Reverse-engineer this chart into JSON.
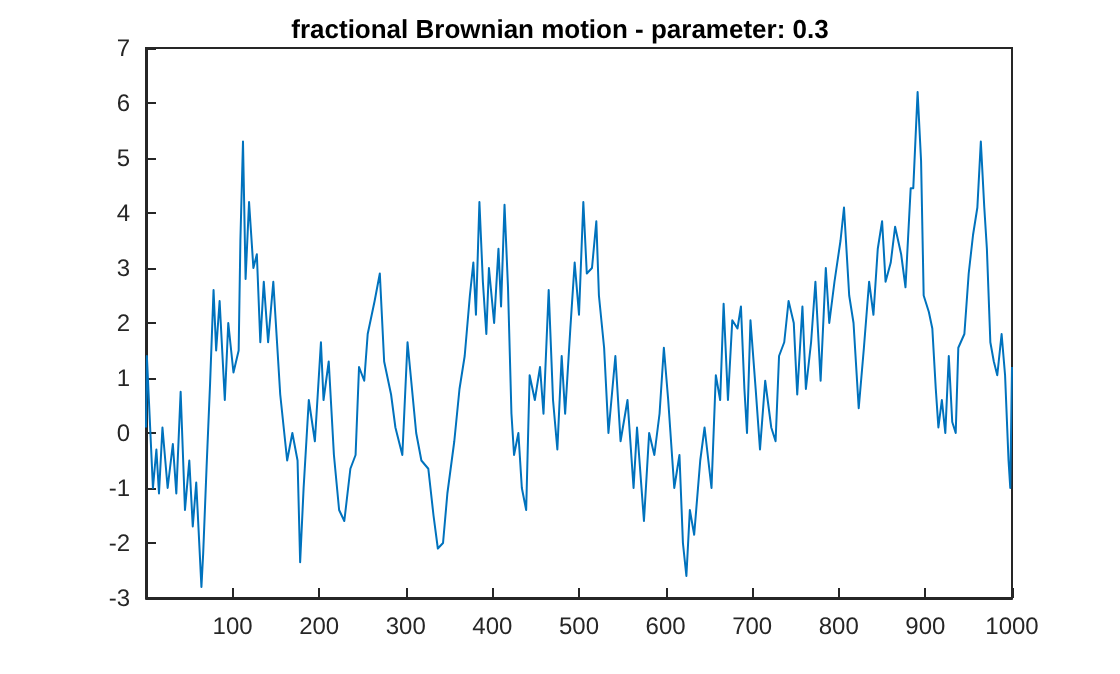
{
  "chart_data": {
    "type": "line",
    "title": "fractional Brownian motion - parameter: 0.3",
    "x": [
      0,
      1,
      8,
      12,
      15,
      19,
      25,
      31,
      35,
      40,
      45,
      50,
      54,
      58,
      64,
      66,
      70,
      74,
      78,
      81,
      85,
      91,
      95,
      101,
      107,
      109,
      112,
      115,
      119,
      124,
      128,
      132,
      136,
      141,
      147,
      155,
      163,
      169,
      175,
      178,
      182,
      188,
      195,
      202,
      205,
      211,
      217,
      223,
      229,
      236,
      242,
      246,
      252,
      256,
      264,
      270,
      275,
      283,
      288,
      296,
      302,
      312,
      318,
      326,
      332,
      337,
      343,
      348,
      356,
      362,
      368,
      374,
      378,
      381,
      385,
      389,
      393,
      396,
      402,
      407,
      410,
      414,
      418,
      422,
      425,
      430,
      434,
      439,
      443,
      449,
      455,
      459,
      465,
      470,
      475,
      480,
      484,
      490,
      495,
      500,
      505,
      509,
      515,
      520,
      523,
      529,
      534,
      542,
      548,
      556,
      563,
      567,
      575,
      581,
      587,
      593,
      598,
      603,
      610,
      616,
      620,
      624,
      628,
      633,
      640,
      645,
      653,
      658,
      663,
      667,
      672,
      677,
      683,
      687,
      691,
      694,
      698,
      704,
      709,
      715,
      722,
      727,
      731,
      737,
      742,
      748,
      752,
      758,
      762,
      768,
      773,
      779,
      785,
      789,
      795,
      802,
      806,
      812,
      817,
      823,
      829,
      835,
      840,
      845,
      850,
      854,
      860,
      865,
      872,
      877,
      883,
      886,
      891,
      895,
      898,
      904,
      908,
      912,
      915,
      919,
      923,
      927,
      931,
      935,
      938,
      945,
      950,
      955,
      960,
      964,
      968,
      971,
      975,
      979,
      983,
      988,
      992,
      996,
      998,
      1000
    ],
    "series": [
      {
        "color": "#0072bd",
        "values": [
          0.1,
          1.4,
          -1.0,
          -0.3,
          -1.1,
          0.1,
          -1.0,
          -0.2,
          -1.1,
          0.75,
          -1.4,
          -0.5,
          -1.7,
          -0.9,
          -2.8,
          -2.2,
          -0.6,
          0.9,
          2.6,
          1.5,
          2.4,
          0.6,
          2.0,
          1.1,
          1.5,
          3.5,
          5.3,
          2.8,
          4.2,
          3.0,
          3.25,
          1.65,
          2.75,
          1.65,
          2.75,
          0.7,
          -0.5,
          0,
          -0.5,
          -2.35,
          -1.0,
          0.6,
          -0.15,
          1.65,
          0.6,
          1.3,
          -0.4,
          -1.4,
          -1.6,
          -0.65,
          -0.4,
          1.2,
          0.95,
          1.8,
          2.4,
          2.9,
          1.3,
          0.7,
          0.1,
          -0.4,
          1.65,
          0,
          -0.5,
          -0.65,
          -1.5,
          -2.1,
          -2.0,
          -1.1,
          -0.15,
          0.8,
          1.4,
          2.5,
          3.1,
          2.15,
          4.2,
          2.75,
          1.8,
          3.0,
          2.0,
          3.35,
          2.3,
          4.15,
          2.65,
          0.35,
          -0.4,
          0,
          -1.0,
          -1.4,
          1.05,
          0.6,
          1.2,
          0.35,
          2.6,
          0.6,
          -0.3,
          1.4,
          0.35,
          1.9,
          3.1,
          2.15,
          4.2,
          2.9,
          3.0,
          3.85,
          2.5,
          1.55,
          0,
          1.4,
          -0.15,
          0.6,
          -1.0,
          0.1,
          -1.6,
          0,
          -0.4,
          0.35,
          1.55,
          0.6,
          -1.0,
          -0.4,
          -2.0,
          -2.6,
          -1.4,
          -1.85,
          -0.5,
          0.1,
          -1.0,
          1.05,
          0.6,
          2.35,
          0.6,
          2.05,
          1.9,
          2.3,
          0.8,
          0,
          2.05,
          0.8,
          -0.3,
          0.95,
          0.1,
          -0.15,
          1.4,
          1.65,
          2.4,
          2.0,
          0.7,
          2.3,
          0.8,
          1.65,
          2.75,
          0.95,
          3.0,
          2.0,
          2.75,
          3.5,
          4.1,
          2.5,
          2.0,
          0.45,
          1.55,
          2.75,
          2.15,
          3.35,
          3.85,
          2.75,
          3.1,
          3.75,
          3.25,
          2.65,
          4.45,
          4.45,
          6.2,
          4.95,
          2.5,
          2.2,
          1.9,
          0.8,
          0.1,
          0.6,
          0,
          1.4,
          0.2,
          0,
          1.55,
          1.8,
          2.9,
          3.6,
          4.1,
          5.3,
          4.1,
          3.35,
          1.65,
          1.3,
          1.05,
          1.8,
          1.05,
          -0.5,
          -1.0,
          1.2
        ]
      }
    ],
    "xlim": [
      0,
      1000
    ],
    "xticks": [
      100,
      200,
      300,
      400,
      500,
      600,
      700,
      800,
      900,
      1000
    ],
    "ylim": [
      -3,
      7
    ],
    "yticks": [
      -3,
      -2,
      -1,
      0,
      1,
      2,
      3,
      4,
      5,
      6,
      7
    ],
    "marker": "none",
    "line_style": "solid"
  }
}
